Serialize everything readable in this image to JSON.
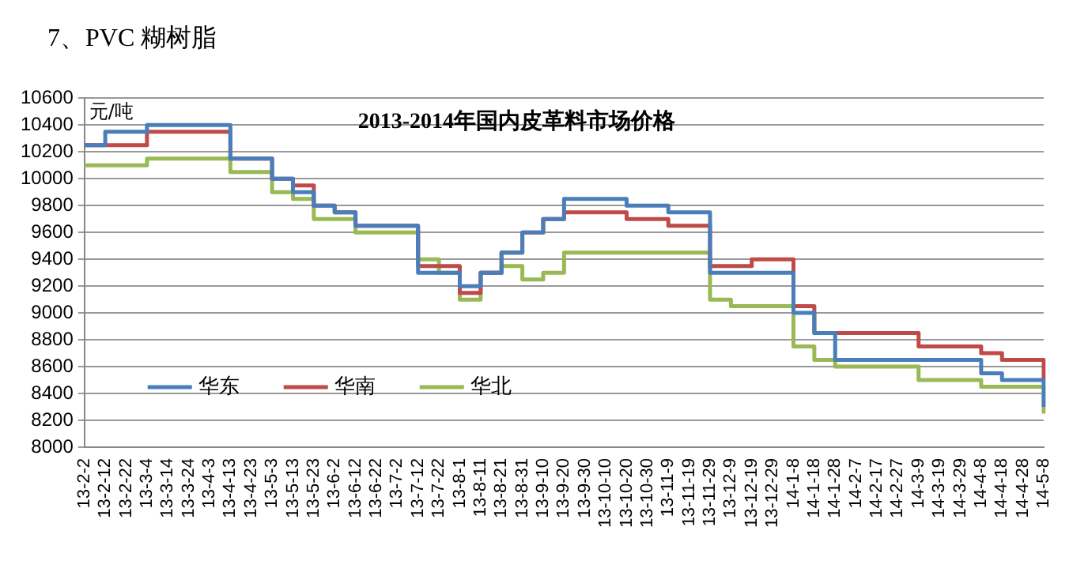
{
  "chart_data": {
    "type": "step",
    "title": "2013-2014年国内皮革料市场价格",
    "ylabel": "元/吨",
    "annotations": [
      "7、PVC 糊树脂"
    ],
    "categories": [
      "13-2-2",
      "13-2-12",
      "13-2-22",
      "13-3-4",
      "13-3-14",
      "13-3-24",
      "13-4-3",
      "13-4-13",
      "13-4-23",
      "13-5-3",
      "13-5-13",
      "13-5-23",
      "13-6-2",
      "13-6-12",
      "13-6-22",
      "13-7-2",
      "13-7-12",
      "13-7-22",
      "13-8-1",
      "13-8-11",
      "13-8-21",
      "13-8-31",
      "13-9-10",
      "13-9-20",
      "13-9-30",
      "13-10-10",
      "13-10-20",
      "13-10-30",
      "13-11-9",
      "13-11-19",
      "13-11-29",
      "13-12-9",
      "13-12-19",
      "13-12-29",
      "14-1-8",
      "14-1-18",
      "14-1-28",
      "14-2-7",
      "14-2-17",
      "14-2-27",
      "14-3-9",
      "14-3-19",
      "14-3-29",
      "14-4-8",
      "14-4-18",
      "14-4-28",
      "14-5-8"
    ],
    "series": [
      {
        "name": "华东",
        "color": "#4a7ebb",
        "values": [
          10250,
          10350,
          10350,
          10400,
          10400,
          10400,
          10400,
          10150,
          10150,
          10000,
          9900,
          9800,
          9750,
          9650,
          9650,
          9650,
          9300,
          9300,
          9200,
          9300,
          9450,
          9600,
          9700,
          9850,
          9850,
          9850,
          9800,
          9800,
          9750,
          9750,
          9300,
          9300,
          9300,
          9300,
          9000,
          8850,
          8650,
          8650,
          8650,
          8650,
          8650,
          8650,
          8650,
          8550,
          8500,
          8500,
          8300
        ]
      },
      {
        "name": "华南",
        "color": "#be4b48",
        "values": [
          10250,
          10250,
          10250,
          10350,
          10350,
          10350,
          10350,
          10150,
          10150,
          10000,
          9950,
          9800,
          9750,
          9650,
          9650,
          9650,
          9350,
          9350,
          9150,
          9300,
          9450,
          9600,
          9700,
          9750,
          9750,
          9750,
          9700,
          9700,
          9650,
          9650,
          9350,
          9350,
          9400,
          9400,
          9050,
          8850,
          8850,
          8850,
          8850,
          8850,
          8750,
          8750,
          8750,
          8700,
          8650,
          8650,
          8500
        ]
      },
      {
        "name": "华北",
        "color": "#98b954",
        "values": [
          10100,
          10100,
          10100,
          10150,
          10150,
          10150,
          10150,
          10050,
          10050,
          9900,
          9850,
          9700,
          9700,
          9600,
          9600,
          9600,
          9400,
          9300,
          9100,
          9300,
          9350,
          9250,
          9300,
          9450,
          9450,
          9450,
          9450,
          9450,
          9450,
          9450,
          9100,
          9050,
          9050,
          9050,
          8750,
          8650,
          8600,
          8600,
          8600,
          8600,
          8500,
          8500,
          8500,
          8450,
          8450,
          8450,
          8250
        ]
      }
    ],
    "ylim": [
      8000,
      10600
    ],
    "yticks": [
      8000,
      8200,
      8400,
      8600,
      8800,
      9000,
      9200,
      9400,
      9600,
      9800,
      10000,
      10200,
      10400,
      10600
    ],
    "grid": "y",
    "legend": "bottom left"
  }
}
